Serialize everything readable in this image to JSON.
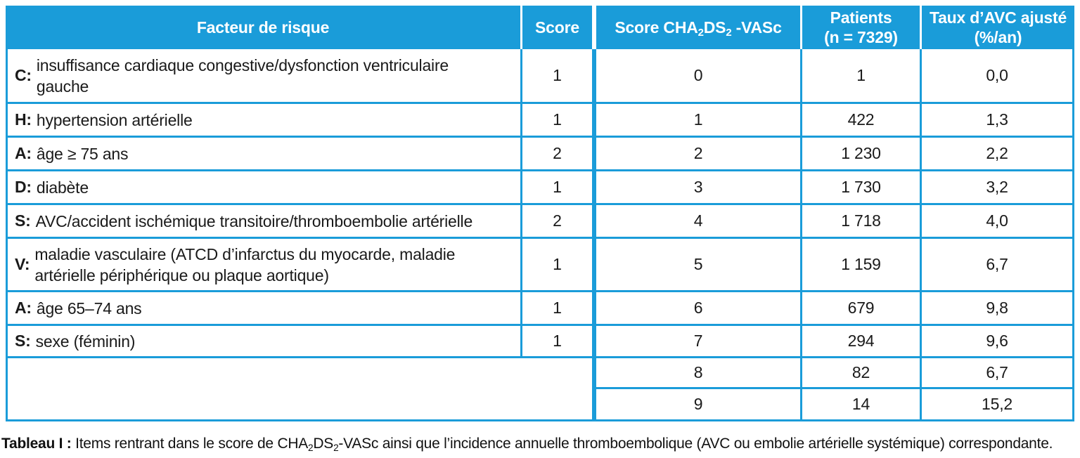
{
  "colors": {
    "accent_blue": "#1a9cd9",
    "header_text": "#ffffff",
    "body_text": "#1a1a1a",
    "background": "#ffffff"
  },
  "left_table": {
    "header": {
      "factor": "Facteur de risque",
      "score": "Score"
    },
    "rows": [
      {
        "prefix": "C:",
        "lines": [
          "insuffisance cardiaque congestive/dysfonction ventriculaire",
          "gauche"
        ],
        "score": "1"
      },
      {
        "prefix": "H:",
        "lines": [
          "hypertension artérielle"
        ],
        "score": "1"
      },
      {
        "prefix": "A:",
        "lines": [
          "âge ≥ 75 ans"
        ],
        "score": "2"
      },
      {
        "prefix": "D:",
        "lines": [
          "diabète"
        ],
        "score": "1"
      },
      {
        "prefix": "S:",
        "lines": [
          "AVC/accident ischémique transitoire/thromboembolie artérielle"
        ],
        "score": "2"
      },
      {
        "prefix": "V:",
        "lines": [
          "maladie vasculaire (ATCD d’infarctus du myocarde, maladie",
          "artérielle périphérique ou plaque aortique)"
        ],
        "score": "1"
      },
      {
        "prefix": "A:",
        "lines": [
          "âge 65–74 ans"
        ],
        "score": "1"
      },
      {
        "prefix": "S:",
        "lines": [
          "sexe (féminin)"
        ],
        "score": "1"
      }
    ]
  },
  "right_table": {
    "header": {
      "cha": {
        "p1": "Score CHA",
        "s1": "2",
        "p2": "DS",
        "s2": "2",
        "p3": " -VASc"
      },
      "patients_line1": "Patients",
      "patients_line2": "(n = 7329)",
      "taux_line1": "Taux d’AVC ajusté",
      "taux_line2": "(%/an)"
    },
    "rows": [
      {
        "score": "0",
        "patients": "1",
        "taux": "0,0"
      },
      {
        "score": "1",
        "patients": "422",
        "taux": "1,3"
      },
      {
        "score": "2",
        "patients": "1 230",
        "taux": "2,2"
      },
      {
        "score": "3",
        "patients": "1 730",
        "taux": "3,2"
      },
      {
        "score": "4",
        "patients": "1 718",
        "taux": "4,0"
      },
      {
        "score": "5",
        "patients": "1 159",
        "taux": "6,7"
      },
      {
        "score": "6",
        "patients": "679",
        "taux": "9,8"
      },
      {
        "score": "7",
        "patients": "294",
        "taux": "9,6"
      },
      {
        "score": "8",
        "patients": "82",
        "taux": "6,7"
      },
      {
        "score": "9",
        "patients": "14",
        "taux": "15,2"
      }
    ]
  },
  "caption": {
    "label": "Tableau I :",
    "p1": " Items rentrant dans le score de CHA",
    "s1": "2",
    "p2": "DS",
    "s2": "2",
    "p3": "-VASc ainsi que l’incidence annuelle thromboembolique (AVC ou embolie artérielle systémique) correspondante."
  }
}
